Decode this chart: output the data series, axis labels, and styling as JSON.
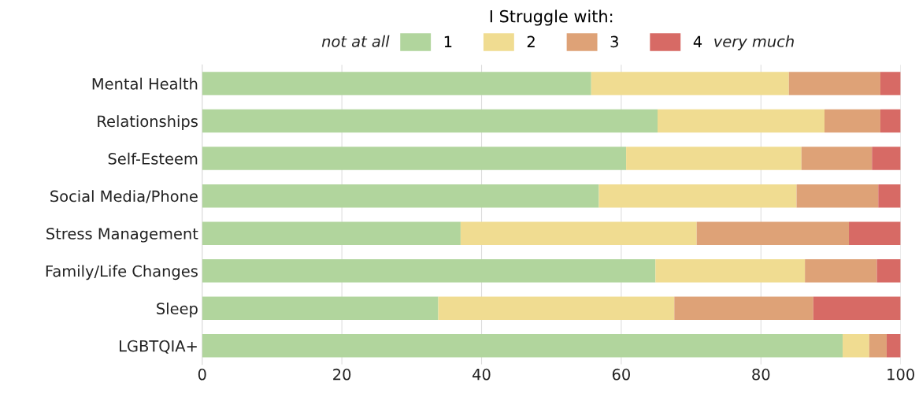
{
  "chart_data": {
    "type": "bar",
    "orientation": "horizontal",
    "stacked": true,
    "legend_title": "I Struggle with:",
    "legend": "top",
    "annotations": [
      "not at all",
      "very much"
    ],
    "categories": [
      "Mental Health",
      "Relationships",
      "Self-Esteem",
      "Social Media/Phone",
      "Stress Management",
      "Family/Life Changes",
      "Sleep",
      "LGBTQIA+"
    ],
    "series": [
      {
        "name": "1",
        "color": "#b1d59d",
        "values": [
          55.7,
          65.2,
          60.7,
          56.8,
          37.0,
          64.9,
          33.8,
          91.7
        ]
      },
      {
        "name": "2",
        "color": "#f0dc91",
        "values": [
          28.3,
          23.9,
          25.1,
          28.3,
          33.8,
          21.4,
          33.8,
          3.8
        ]
      },
      {
        "name": "3",
        "color": "#dea277",
        "values": [
          13.1,
          8.0,
          10.1,
          11.7,
          21.8,
          10.3,
          19.9,
          2.5
        ]
      },
      {
        "name": "4",
        "color": "#d76a65",
        "values": [
          2.9,
          2.9,
          4.1,
          3.2,
          7.4,
          3.4,
          12.5,
          2.0
        ]
      }
    ],
    "xlim": [
      0,
      100
    ],
    "xticks": [
      0,
      20,
      40,
      60,
      80,
      100
    ],
    "grid": "x"
  }
}
